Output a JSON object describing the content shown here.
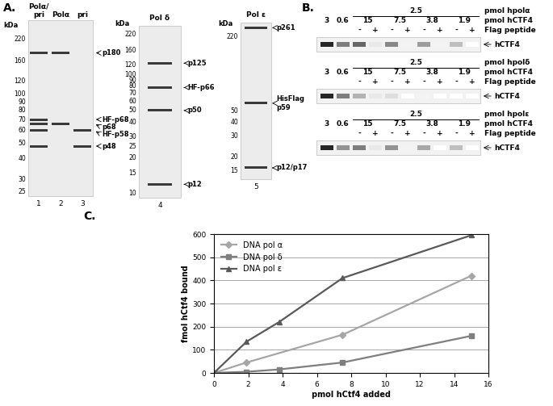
{
  "panel_a": {
    "label": "A.",
    "gels": [
      {
        "unit": "kDa",
        "markers": [
          220,
          160,
          120,
          100,
          90,
          80,
          70,
          60,
          50,
          40,
          30,
          25
        ],
        "lanes": [
          {
            "header": "Polα/\npri",
            "number": "1"
          },
          {
            "header": "Polα",
            "number": "2"
          },
          {
            "header": "pri",
            "number": "3"
          }
        ],
        "bands": [
          {
            "label": "p180",
            "kda": 180,
            "lanes": [
              0,
              1
            ]
          },
          {
            "label": "HF-p68",
            "kda": 70,
            "lanes": [
              0
            ]
          },
          {
            "label": "p68",
            "kda": 66,
            "lanes": [
              0,
              1
            ]
          },
          {
            "label": "HF-p58",
            "kda": 60,
            "lanes": [
              0,
              2
            ]
          },
          {
            "label": "p48",
            "kda": 48,
            "lanes": [
              0,
              2
            ]
          }
        ]
      },
      {
        "unit": "kDa",
        "markers": [
          220,
          160,
          120,
          100,
          90,
          80,
          70,
          60,
          50,
          40,
          30,
          25,
          20,
          15,
          10
        ],
        "lanes": [
          {
            "header": "Pol δ",
            "number": "4"
          }
        ],
        "bands": [
          {
            "label": "p125",
            "kda": 125,
            "lanes": [
              0
            ]
          },
          {
            "label": "HF-p66",
            "kda": 78,
            "lanes": [
              0
            ]
          },
          {
            "label": "p50",
            "kda": 50,
            "lanes": [
              0
            ]
          },
          {
            "label": "p12",
            "kda": 12,
            "lanes": [
              0
            ]
          }
        ]
      },
      {
        "unit": "kDa",
        "markers": [
          220,
          50,
          40,
          30,
          20,
          15
        ],
        "lanes": [
          {
            "header": "Pol ε",
            "number": "5"
          }
        ],
        "bands": [
          {
            "label": "p261",
            "kda": 261,
            "lanes": [
              0
            ]
          },
          {
            "label": "HisFlag\np59",
            "kda": 58,
            "lanes": [
              0
            ]
          },
          {
            "label": "p12/p17",
            "kda": 16,
            "lanes": [
              0
            ]
          }
        ]
      }
    ]
  },
  "panel_b": {
    "label": "B.",
    "blots": [
      {
        "enzyme_amount": 2.5,
        "enzyme": "pmol hpolα",
        "ctf4_label": "pmol hCTF4",
        "ctf4_amounts": [
          3,
          0.6,
          15,
          7.5,
          3.8,
          1.9
        ],
        "flag_label": "Flag peptide",
        "flag": [
          "-",
          "+",
          "-",
          "+",
          "-",
          "+",
          "-",
          "+"
        ],
        "band_label": "hCTF4",
        "band_intensity": [
          1.0,
          0.6,
          0.7,
          0.1,
          0.55,
          0.05,
          0.45,
          0.05,
          0.3,
          0.0
        ]
      },
      {
        "enzyme_amount": 2.5,
        "enzyme": "pmol hpolδ",
        "ctf4_label": "pmol hCTF4",
        "ctf4_amounts": [
          3,
          0.6,
          15,
          7.5,
          3.8,
          1.9
        ],
        "flag_label": "Flag peptide",
        "flag": [
          "-",
          "+",
          "-",
          "+",
          "-",
          "+",
          "-",
          "+"
        ],
        "band_label": "hCTF4",
        "band_intensity": [
          1.0,
          0.6,
          0.35,
          0.1,
          0.15,
          0.0,
          0.05,
          0.0,
          0.0,
          0.0
        ]
      },
      {
        "enzyme_amount": 2.5,
        "enzyme": "pmol hpolε",
        "ctf4_label": "pmol hCTF4",
        "ctf4_amounts": [
          3,
          0.6,
          15,
          7.5,
          3.8,
          1.9
        ],
        "flag_label": "Flag peptide",
        "flag": [
          "-",
          "+",
          "-",
          "+",
          "-",
          "+",
          "-",
          "+"
        ],
        "band_label": "hCTF4",
        "band_intensity": [
          1.0,
          0.5,
          0.6,
          0.1,
          0.5,
          0.05,
          0.4,
          0.0,
          0.3,
          0.0
        ]
      }
    ]
  },
  "panel_c": {
    "label": "C."
  },
  "chart_data": {
    "type": "line",
    "x_label": "pmol hCtf4 added",
    "y_label": "fmol hCtf4 bound",
    "xlim": [
      0,
      16
    ],
    "xticks": [
      0,
      2,
      4,
      6,
      8,
      10,
      12,
      14,
      16
    ],
    "ylim": [
      0,
      600
    ],
    "yticks": [
      0,
      100,
      200,
      300,
      400,
      500,
      600
    ],
    "grid": true,
    "legend": "upper left",
    "series": [
      {
        "name": "DNA pol α",
        "color": "#a6a6a6",
        "marker": "diamond",
        "x": [
          0,
          1.9,
          7.5,
          15
        ],
        "values": [
          0,
          45,
          165,
          420
        ]
      },
      {
        "name": "DNA pol δ",
        "color": "#7f7f7f",
        "marker": "square",
        "x": [
          0,
          1.9,
          3.8,
          7.5,
          15
        ],
        "values": [
          0,
          5,
          15,
          45,
          160
        ]
      },
      {
        "name": "DNA pol ε",
        "color": "#595959",
        "marker": "triangle",
        "x": [
          0,
          1.9,
          3.8,
          7.5,
          15
        ],
        "values": [
          0,
          135,
          220,
          410,
          595
        ]
      }
    ]
  }
}
